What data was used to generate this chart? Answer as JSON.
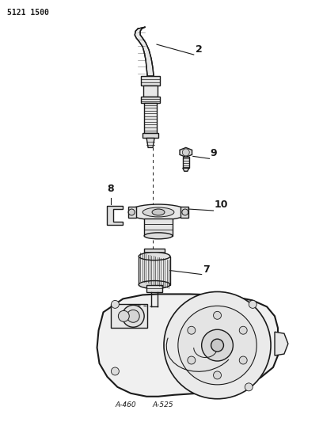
{
  "bg_color": "#ffffff",
  "line_color": "#1a1a1a",
  "title_label": "5121 1500",
  "figsize": [
    4.08,
    5.33
  ],
  "dpi": 100
}
